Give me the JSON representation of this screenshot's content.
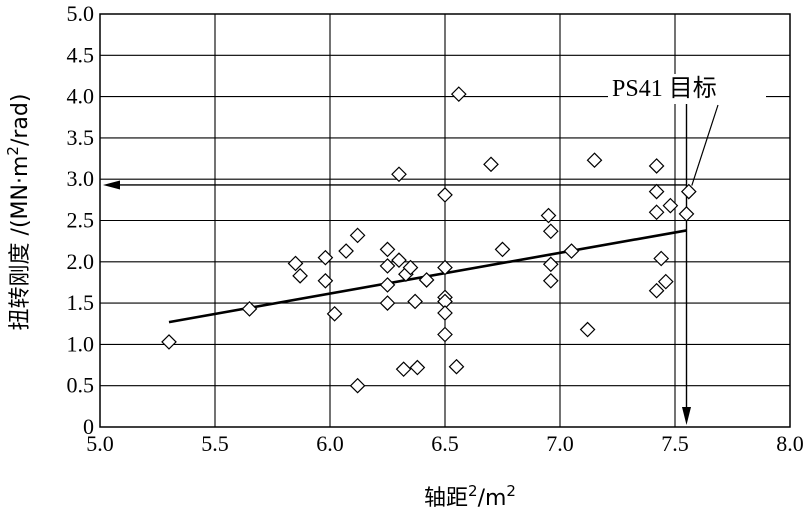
{
  "chart_data": {
    "type": "scatter",
    "xlabel": {
      "main": "轴距",
      "sup1": "2",
      "slash": "/m",
      "sup2": "2"
    },
    "ylabel": {
      "main": "扭转刚度 /(MN·m",
      "sup": "2",
      "tail": "/rad)"
    },
    "xlim": [
      5.0,
      8.0
    ],
    "ylim": [
      0,
      5.0
    ],
    "x_ticks": [
      "5.0",
      "5.5",
      "6.0",
      "6.5",
      "7.0",
      "7.5",
      "8.0"
    ],
    "y_ticks": [
      "0",
      "0.5",
      "1.0",
      "1.5",
      "2.0",
      "2.5",
      "3.0",
      "3.5",
      "4.0",
      "4.5",
      "5.0"
    ],
    "grid": true,
    "marker": "diamond",
    "points": [
      [
        5.3,
        1.03
      ],
      [
        5.65,
        1.43
      ],
      [
        5.85,
        1.98
      ],
      [
        5.87,
        1.83
      ],
      [
        5.98,
        2.05
      ],
      [
        5.98,
        1.77
      ],
      [
        6.02,
        1.37
      ],
      [
        6.07,
        2.13
      ],
      [
        6.12,
        2.32
      ],
      [
        6.12,
        0.5
      ],
      [
        6.25,
        2.15
      ],
      [
        6.25,
        1.95
      ],
      [
        6.25,
        1.72
      ],
      [
        6.25,
        1.5
      ],
      [
        6.3,
        2.02
      ],
      [
        6.3,
        3.06
      ],
      [
        6.32,
        0.7
      ],
      [
        6.33,
        1.85
      ],
      [
        6.35,
        1.93
      ],
      [
        6.37,
        1.52
      ],
      [
        6.38,
        0.72
      ],
      [
        6.42,
        1.78
      ],
      [
        6.5,
        2.81
      ],
      [
        6.5,
        1.93
      ],
      [
        6.5,
        1.57
      ],
      [
        6.5,
        1.52
      ],
      [
        6.5,
        1.38
      ],
      [
        6.5,
        1.12
      ],
      [
        6.55,
        0.73
      ],
      [
        6.56,
        4.03
      ],
      [
        6.7,
        3.18
      ],
      [
        6.75,
        2.15
      ],
      [
        6.95,
        2.56
      ],
      [
        6.96,
        2.37
      ],
      [
        6.96,
        1.97
      ],
      [
        6.96,
        1.77
      ],
      [
        7.05,
        2.13
      ],
      [
        7.12,
        1.18
      ],
      [
        7.15,
        3.23
      ],
      [
        7.42,
        3.16
      ],
      [
        7.42,
        2.85
      ],
      [
        7.42,
        2.6
      ],
      [
        7.42,
        1.65
      ],
      [
        7.44,
        2.04
      ],
      [
        7.46,
        1.76
      ],
      [
        7.48,
        2.68
      ],
      [
        7.55,
        2.58
      ],
      [
        7.56,
        2.85
      ]
    ],
    "trend_line": {
      "x": [
        5.3,
        7.55
      ],
      "y": [
        1.27,
        2.38
      ]
    },
    "target": {
      "x": 7.56,
      "y": 2.85,
      "label": "PS41 目标"
    },
    "reference_lines": {
      "horizontal_y": 2.93,
      "vertical_x": 7.55
    }
  }
}
